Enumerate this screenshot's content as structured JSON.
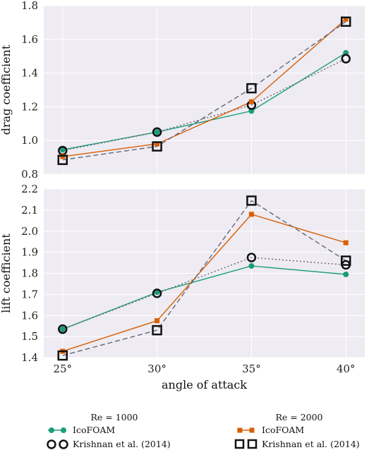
{
  "colors": {
    "ico_re1000": "#1b9e77",
    "ico_re2000": "#d95f02",
    "krishnan": "#111111",
    "krishnan_line": "#666677",
    "panel_bg": "#eeebf2",
    "grid": "#ffffff"
  },
  "chart_data": [
    {
      "type": "line",
      "ylabel": "drag coefficient",
      "xlabel": "",
      "x": [
        25,
        30,
        35,
        40
      ],
      "x_tick_labels": [
        "",
        "",
        "",
        ""
      ],
      "xlim": [
        24,
        41
      ],
      "ylim": [
        0.8,
        1.8
      ],
      "y_ticks": [
        0.8,
        1.0,
        1.2,
        1.4,
        1.6,
        1.8
      ],
      "y_tick_labels": [
        "0.8",
        "1.0",
        "1.2",
        "1.4",
        "1.6",
        "1.8"
      ],
      "grid": true,
      "series": [
        {
          "key": "ico1000",
          "values": [
            0.945,
            1.05,
            1.175,
            1.52
          ]
        },
        {
          "key": "kr1000",
          "values": [
            0.94,
            1.05,
            1.21,
            1.485
          ]
        },
        {
          "key": "ico2000",
          "values": [
            0.905,
            0.98,
            1.23,
            1.72
          ]
        },
        {
          "key": "kr2000",
          "values": [
            0.885,
            0.965,
            1.31,
            1.705
          ]
        }
      ]
    },
    {
      "type": "line",
      "ylabel": "lift coefficient",
      "xlabel": "angle of attack",
      "x": [
        25,
        30,
        35,
        40
      ],
      "x_tick_labels": [
        "25°",
        "30°",
        "35°",
        "40°"
      ],
      "xlim": [
        24,
        41
      ],
      "ylim": [
        1.4,
        2.2
      ],
      "y_ticks": [
        1.4,
        1.5,
        1.6,
        1.7,
        1.8,
        1.9,
        2.0,
        2.1,
        2.2
      ],
      "y_tick_labels": [
        "1.4",
        "1.5",
        "1.6",
        "1.7",
        "1.8",
        "1.9",
        "2.0",
        "2.1",
        "2.2"
      ],
      "grid": true,
      "series": [
        {
          "key": "ico1000",
          "values": [
            1.535,
            1.71,
            1.835,
            1.795
          ]
        },
        {
          "key": "kr1000",
          "values": [
            1.535,
            1.705,
            1.875,
            1.84
          ]
        },
        {
          "key": "ico2000",
          "values": [
            1.43,
            1.575,
            2.08,
            1.945
          ]
        },
        {
          "key": "kr2000",
          "values": [
            1.41,
            1.53,
            2.145,
            1.86
          ]
        }
      ]
    }
  ],
  "legend": {
    "placement": "bottom",
    "re1000_title": "Re = 1000",
    "re2000_title": "Re = 2000",
    "ico_label": "IcoFOAM",
    "krishnan_label": "Krishnan et al. (2014)"
  }
}
